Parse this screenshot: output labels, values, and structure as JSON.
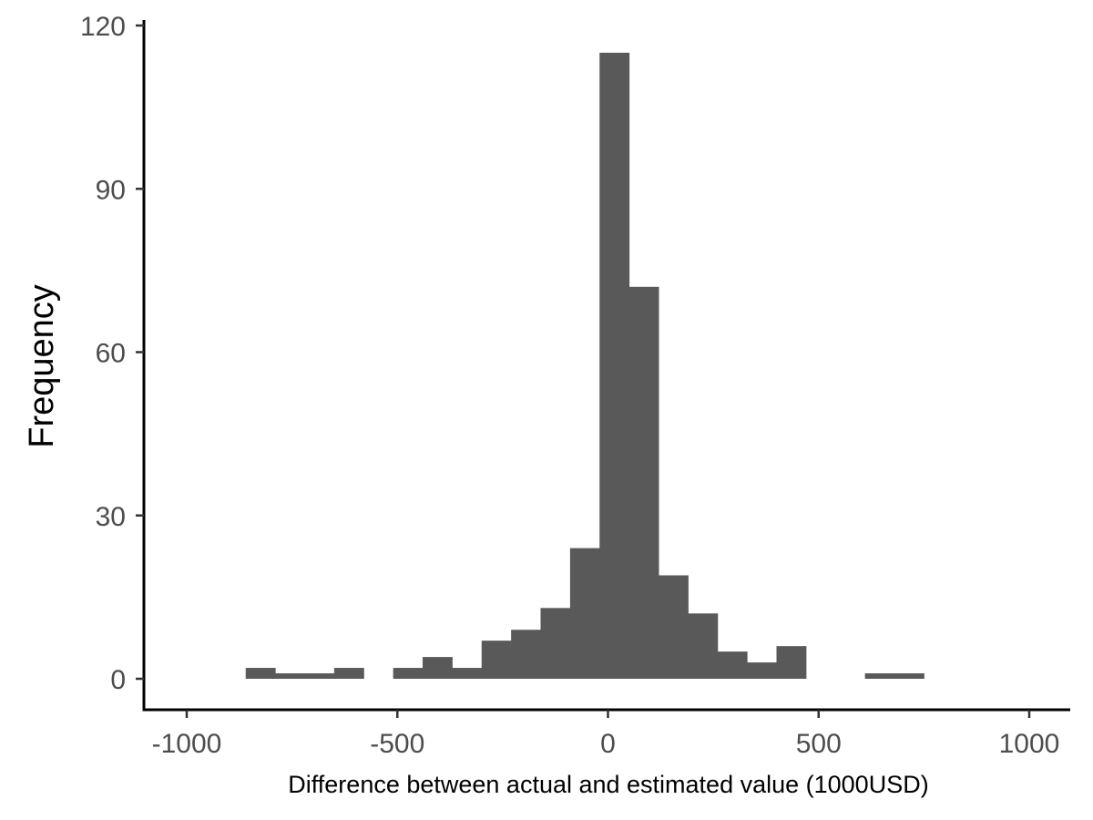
{
  "chart_data": {
    "type": "bar",
    "subtype": "histogram",
    "title": "",
    "xlabel": "Difference between actual and estimated value (1000USD)",
    "ylabel": "Frequency",
    "xlim": [
      -1000,
      1000
    ],
    "ylim": [
      0,
      120
    ],
    "x_ticks": [
      -1000,
      -500,
      0,
      500,
      1000
    ],
    "x_tick_labels": [
      "-1000",
      "-500",
      "0",
      "500",
      "1000"
    ],
    "y_ticks": [
      0,
      30,
      60,
      90,
      120
    ],
    "y_tick_labels": [
      "0",
      "30",
      "60",
      "90",
      "120"
    ],
    "grid": false,
    "legend": "none",
    "bar_color": "#595959",
    "bins": [
      {
        "x_start": -860,
        "x_end": -790,
        "count": 2
      },
      {
        "x_start": -790,
        "x_end": -720,
        "count": 1
      },
      {
        "x_start": -720,
        "x_end": -650,
        "count": 1
      },
      {
        "x_start": -650,
        "x_end": -580,
        "count": 2
      },
      {
        "x_start": -580,
        "x_end": -510,
        "count": 0
      },
      {
        "x_start": -510,
        "x_end": -440,
        "count": 2
      },
      {
        "x_start": -440,
        "x_end": -370,
        "count": 4
      },
      {
        "x_start": -370,
        "x_end": -300,
        "count": 2
      },
      {
        "x_start": -300,
        "x_end": -230,
        "count": 7
      },
      {
        "x_start": -230,
        "x_end": -160,
        "count": 9
      },
      {
        "x_start": -160,
        "x_end": -90,
        "count": 13
      },
      {
        "x_start": -90,
        "x_end": -20,
        "count": 24
      },
      {
        "x_start": -20,
        "x_end": 50,
        "count": 115
      },
      {
        "x_start": 50,
        "x_end": 120,
        "count": 72
      },
      {
        "x_start": 120,
        "x_end": 190,
        "count": 19
      },
      {
        "x_start": 190,
        "x_end": 260,
        "count": 12
      },
      {
        "x_start": 260,
        "x_end": 330,
        "count": 5
      },
      {
        "x_start": 330,
        "x_end": 400,
        "count": 3
      },
      {
        "x_start": 400,
        "x_end": 470,
        "count": 6
      },
      {
        "x_start": 470,
        "x_end": 540,
        "count": 0
      },
      {
        "x_start": 540,
        "x_end": 610,
        "count": 0
      },
      {
        "x_start": 610,
        "x_end": 680,
        "count": 1
      },
      {
        "x_start": 680,
        "x_end": 750,
        "count": 1
      }
    ]
  }
}
